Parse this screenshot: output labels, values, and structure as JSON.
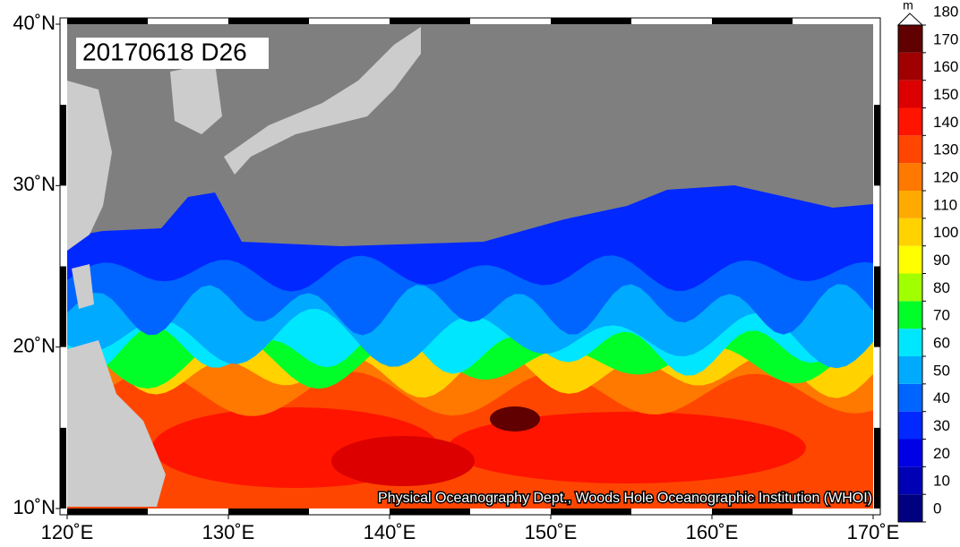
{
  "map": {
    "label": "20170618 D26",
    "credit": "Physical Oceanography Dept., Woods Hole Oceanographic Institution (WHOI)",
    "xlim": [
      120,
      170
    ],
    "ylim": [
      10,
      40
    ],
    "xticks": [
      {
        "value": 120,
        "label": "120˚E"
      },
      {
        "value": 130,
        "label": "130˚E"
      },
      {
        "value": 140,
        "label": "140˚E"
      },
      {
        "value": 150,
        "label": "150˚E"
      },
      {
        "value": 160,
        "label": "160˚E"
      },
      {
        "value": 170,
        "label": "170˚E"
      }
    ],
    "yticks": [
      {
        "value": 10,
        "label": "10˚N"
      },
      {
        "value": 20,
        "label": "20˚N"
      },
      {
        "value": 30,
        "label": "30˚N"
      },
      {
        "value": 40,
        "label": "40˚N"
      }
    ]
  },
  "colorbar": {
    "unit": "m",
    "lim": [
      0,
      180
    ],
    "ticks": [
      0,
      10,
      20,
      30,
      40,
      50,
      60,
      70,
      80,
      90,
      100,
      110,
      120,
      130,
      140,
      150,
      160,
      170,
      180
    ],
    "colors": [
      "#000080",
      "#0000b4",
      "#0000e6",
      "#0028ff",
      "#0064ff",
      "#00aaff",
      "#00e6ff",
      "#00ff28",
      "#a0ff00",
      "#ffff00",
      "#ffd200",
      "#ffaa00",
      "#ff7800",
      "#ff4600",
      "#ff1400",
      "#dc0000",
      "#a00000",
      "#600000"
    ]
  }
}
